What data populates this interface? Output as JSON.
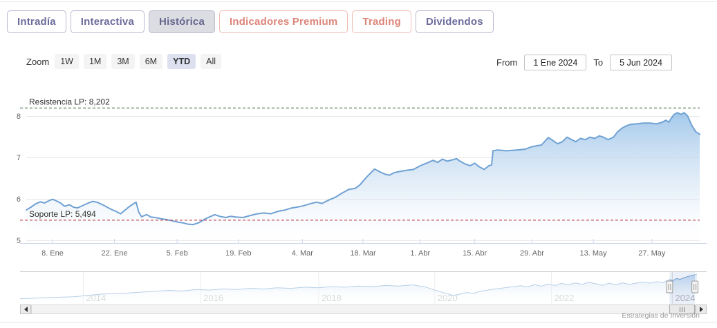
{
  "tabs": [
    {
      "label": "Intradía"
    },
    {
      "label": "Interactiva"
    },
    {
      "label": "Histórica"
    },
    {
      "label": "Indicadores Premium"
    },
    {
      "label": "Trading"
    },
    {
      "label": "Dividendos"
    }
  ],
  "range_controls": {
    "zoom_label": "Zoom",
    "buttons": [
      {
        "label": "1W",
        "selected": false
      },
      {
        "label": "1M",
        "selected": false
      },
      {
        "label": "3M",
        "selected": false
      },
      {
        "label": "6M",
        "selected": false
      },
      {
        "label": "YTD",
        "selected": true
      },
      {
        "label": "All",
        "selected": false
      }
    ],
    "from_label": "From",
    "from_value": "1 Ene 2024",
    "to_label": "To",
    "to_value": "5 Jun 2024"
  },
  "credit": "Estrategias de Inversión",
  "colors": {
    "tab_purple": "#6c6c9c",
    "tab_salmon": "#dc8579",
    "series_line": "#6fa1d3",
    "resistance": "#255725",
    "support": "#b3202e",
    "grid": "#e6e6e6",
    "axis_line": "#ccd6eb",
    "axis_text": "#666666"
  },
  "chart_data": {
    "type": "area",
    "title": "",
    "xlabel": "",
    "ylabel": "",
    "x_range": [
      "1 Ene 2024",
      "5 Jun 2024"
    ],
    "ylim": [
      4.93,
      8.65
    ],
    "grid": true,
    "y_axis": {
      "ticks": [
        8,
        7,
        6,
        5
      ]
    },
    "x_axis": {
      "labels": [
        "8. Ene",
        "22. Ene",
        "5. Feb",
        "19. Feb",
        "4. Mar",
        "18. Mar",
        "1. Abr",
        "15. Abr",
        "29. Abr",
        "13. May",
        "27. May"
      ],
      "fracs": [
        0.039,
        0.131,
        0.224,
        0.315,
        0.41,
        0.5,
        0.585,
        0.666,
        0.751,
        0.842,
        0.929
      ]
    },
    "plotlines": [
      {
        "label": "Resistencia LP: 8,202",
        "value": 8.202,
        "color": "#255725"
      },
      {
        "label": "Soporte LP: 5,494",
        "value": 5.494,
        "color": "#b3202e"
      }
    ],
    "series": [
      {
        "points": [
          [
            0.0,
            5.73
          ],
          [
            0.007,
            5.8
          ],
          [
            0.014,
            5.88
          ],
          [
            0.021,
            5.93
          ],
          [
            0.027,
            5.9
          ],
          [
            0.033,
            5.95
          ],
          [
            0.039,
            5.99
          ],
          [
            0.045,
            5.95
          ],
          [
            0.051,
            5.9
          ],
          [
            0.057,
            5.82
          ],
          [
            0.064,
            5.86
          ],
          [
            0.07,
            5.8
          ],
          [
            0.076,
            5.78
          ],
          [
            0.084,
            5.84
          ],
          [
            0.092,
            5.9
          ],
          [
            0.099,
            5.94
          ],
          [
            0.105,
            5.92
          ],
          [
            0.113,
            5.86
          ],
          [
            0.12,
            5.8
          ],
          [
            0.127,
            5.74
          ],
          [
            0.133,
            5.7
          ],
          [
            0.14,
            5.64
          ],
          [
            0.146,
            5.72
          ],
          [
            0.152,
            5.8
          ],
          [
            0.158,
            5.87
          ],
          [
            0.163,
            5.92
          ],
          [
            0.167,
            5.68
          ],
          [
            0.171,
            5.57
          ],
          [
            0.179,
            5.62
          ],
          [
            0.185,
            5.56
          ],
          [
            0.192,
            5.55
          ],
          [
            0.2,
            5.52
          ],
          [
            0.208,
            5.5
          ],
          [
            0.217,
            5.47
          ],
          [
            0.225,
            5.44
          ],
          [
            0.233,
            5.42
          ],
          [
            0.24,
            5.39
          ],
          [
            0.248,
            5.38
          ],
          [
            0.257,
            5.43
          ],
          [
            0.265,
            5.51
          ],
          [
            0.273,
            5.57
          ],
          [
            0.28,
            5.62
          ],
          [
            0.287,
            5.58
          ],
          [
            0.296,
            5.55
          ],
          [
            0.304,
            5.58
          ],
          [
            0.312,
            5.56
          ],
          [
            0.322,
            5.55
          ],
          [
            0.333,
            5.6
          ],
          [
            0.343,
            5.64
          ],
          [
            0.353,
            5.66
          ],
          [
            0.363,
            5.64
          ],
          [
            0.374,
            5.7
          ],
          [
            0.384,
            5.73
          ],
          [
            0.394,
            5.78
          ],
          [
            0.402,
            5.8
          ],
          [
            0.411,
            5.83
          ],
          [
            0.421,
            5.88
          ],
          [
            0.431,
            5.92
          ],
          [
            0.439,
            5.89
          ],
          [
            0.449,
            5.97
          ],
          [
            0.459,
            6.04
          ],
          [
            0.469,
            6.14
          ],
          [
            0.479,
            6.23
          ],
          [
            0.488,
            6.25
          ],
          [
            0.495,
            6.33
          ],
          [
            0.505,
            6.52
          ],
          [
            0.517,
            6.72
          ],
          [
            0.524,
            6.66
          ],
          [
            0.532,
            6.6
          ],
          [
            0.539,
            6.57
          ],
          [
            0.546,
            6.63
          ],
          [
            0.554,
            6.66
          ],
          [
            0.565,
            6.69
          ],
          [
            0.575,
            6.71
          ],
          [
            0.585,
            6.8
          ],
          [
            0.594,
            6.86
          ],
          [
            0.604,
            6.93
          ],
          [
            0.611,
            6.88
          ],
          [
            0.618,
            6.96
          ],
          [
            0.625,
            6.91
          ],
          [
            0.632,
            6.94
          ],
          [
            0.639,
            6.97
          ],
          [
            0.644,
            6.91
          ],
          [
            0.652,
            6.84
          ],
          [
            0.659,
            6.8
          ],
          [
            0.666,
            6.86
          ],
          [
            0.673,
            6.77
          ],
          [
            0.68,
            6.71
          ],
          [
            0.687,
            6.8
          ],
          [
            0.691,
            6.82
          ],
          [
            0.693,
            7.16
          ],
          [
            0.7,
            7.18
          ],
          [
            0.713,
            7.16
          ],
          [
            0.728,
            7.18
          ],
          [
            0.741,
            7.2
          ],
          [
            0.749,
            7.25
          ],
          [
            0.757,
            7.28
          ],
          [
            0.765,
            7.3
          ],
          [
            0.775,
            7.48
          ],
          [
            0.782,
            7.41
          ],
          [
            0.789,
            7.33
          ],
          [
            0.796,
            7.38
          ],
          [
            0.803,
            7.49
          ],
          [
            0.81,
            7.43
          ],
          [
            0.816,
            7.38
          ],
          [
            0.823,
            7.46
          ],
          [
            0.83,
            7.43
          ],
          [
            0.837,
            7.49
          ],
          [
            0.844,
            7.46
          ],
          [
            0.851,
            7.52
          ],
          [
            0.857,
            7.49
          ],
          [
            0.864,
            7.43
          ],
          [
            0.872,
            7.49
          ],
          [
            0.878,
            7.62
          ],
          [
            0.885,
            7.71
          ],
          [
            0.892,
            7.77
          ],
          [
            0.898,
            7.8
          ],
          [
            0.906,
            7.81
          ],
          [
            0.916,
            7.83
          ],
          [
            0.926,
            7.83
          ],
          [
            0.936,
            7.81
          ],
          [
            0.944,
            7.85
          ],
          [
            0.95,
            7.9
          ],
          [
            0.954,
            7.85
          ],
          [
            0.958,
            7.95
          ],
          [
            0.962,
            8.04
          ],
          [
            0.967,
            8.08
          ],
          [
            0.972,
            8.04
          ],
          [
            0.977,
            8.08
          ],
          [
            0.982,
            8.0
          ],
          [
            0.988,
            7.78
          ],
          [
            0.994,
            7.62
          ],
          [
            1.0,
            7.56
          ]
        ]
      }
    ],
    "navigator": {
      "year_labels": [
        "2014",
        "2016",
        "2018",
        "2020",
        "2022",
        "2024"
      ],
      "year_fracs": [
        0.092,
        0.263,
        0.435,
        0.604,
        0.774,
        0.95
      ],
      "selected_range": [
        0.946,
        0.983
      ],
      "series_end_frac": 0.986,
      "points": [
        [
          0,
          0.15
        ],
        [
          0.02,
          0.17
        ],
        [
          0.05,
          0.2
        ],
        [
          0.08,
          0.22
        ],
        [
          0.1,
          0.27
        ],
        [
          0.12,
          0.31
        ],
        [
          0.14,
          0.33
        ],
        [
          0.16,
          0.35
        ],
        [
          0.18,
          0.38
        ],
        [
          0.2,
          0.41
        ],
        [
          0.22,
          0.44
        ],
        [
          0.24,
          0.42
        ],
        [
          0.26,
          0.47
        ],
        [
          0.28,
          0.45
        ],
        [
          0.3,
          0.49
        ],
        [
          0.32,
          0.47
        ],
        [
          0.34,
          0.51
        ],
        [
          0.36,
          0.49
        ],
        [
          0.38,
          0.53
        ],
        [
          0.4,
          0.51
        ],
        [
          0.42,
          0.55
        ],
        [
          0.44,
          0.53
        ],
        [
          0.46,
          0.57
        ],
        [
          0.48,
          0.55
        ],
        [
          0.5,
          0.59
        ],
        [
          0.52,
          0.57
        ],
        [
          0.54,
          0.61
        ],
        [
          0.56,
          0.59
        ],
        [
          0.58,
          0.63
        ],
        [
          0.6,
          0.55
        ],
        [
          0.61,
          0.47
        ],
        [
          0.62,
          0.4
        ],
        [
          0.63,
          0.33
        ],
        [
          0.64,
          0.27
        ],
        [
          0.65,
          0.31
        ],
        [
          0.66,
          0.37
        ],
        [
          0.67,
          0.33
        ],
        [
          0.68,
          0.41
        ],
        [
          0.7,
          0.48
        ],
        [
          0.72,
          0.54
        ],
        [
          0.74,
          0.6
        ],
        [
          0.75,
          0.56
        ],
        [
          0.76,
          0.64
        ],
        [
          0.77,
          0.58
        ],
        [
          0.78,
          0.66
        ],
        [
          0.79,
          0.61
        ],
        [
          0.8,
          0.68
        ],
        [
          0.81,
          0.63
        ],
        [
          0.82,
          0.7
        ],
        [
          0.83,
          0.65
        ],
        [
          0.84,
          0.72
        ],
        [
          0.85,
          0.67
        ],
        [
          0.86,
          0.61
        ],
        [
          0.87,
          0.69
        ],
        [
          0.88,
          0.63
        ],
        [
          0.89,
          0.7
        ],
        [
          0.9,
          0.65
        ],
        [
          0.91,
          0.69
        ],
        [
          0.92,
          0.73
        ],
        [
          0.93,
          0.69
        ],
        [
          0.94,
          0.74
        ],
        [
          0.95,
          0.71
        ],
        [
          0.955,
          0.77
        ],
        [
          0.96,
          0.81
        ],
        [
          0.965,
          0.78
        ],
        [
          0.97,
          0.85
        ],
        [
          0.975,
          0.82
        ],
        [
          0.98,
          0.87
        ],
        [
          0.985,
          0.91
        ],
        [
          0.99,
          0.94
        ],
        [
          0.995,
          0.97
        ],
        [
          1,
          1.0
        ]
      ]
    }
  }
}
